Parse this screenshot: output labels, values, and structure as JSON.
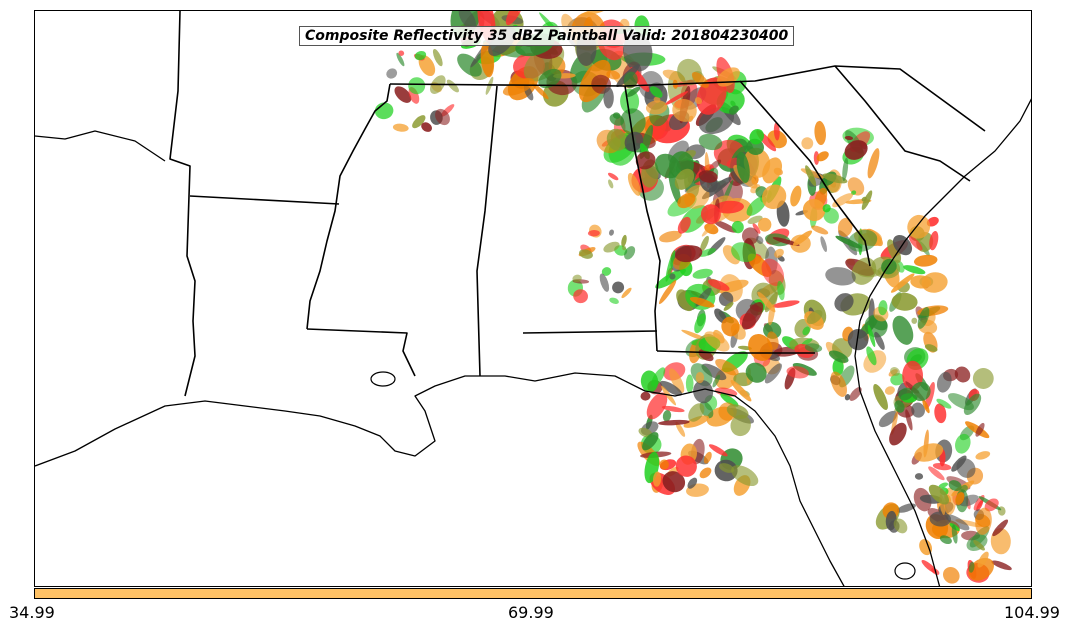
{
  "title": "Composite Reflectivity 35 dBZ Paintball Valid: 201804230400",
  "colorbar": {
    "color": "#ffc266",
    "tick_labels": [
      "34.99",
      "69.99",
      "104.99"
    ]
  },
  "colors": {
    "member_red": "#ff3030",
    "member_orange": "#f08000",
    "member_green": "#20d020",
    "member_olive": "#8a9a30",
    "member_brown": "#8b2020",
    "member_gray": "#505050",
    "member_light_orange": "#f5a030",
    "member_dark_green": "#2e8b2e"
  }
}
